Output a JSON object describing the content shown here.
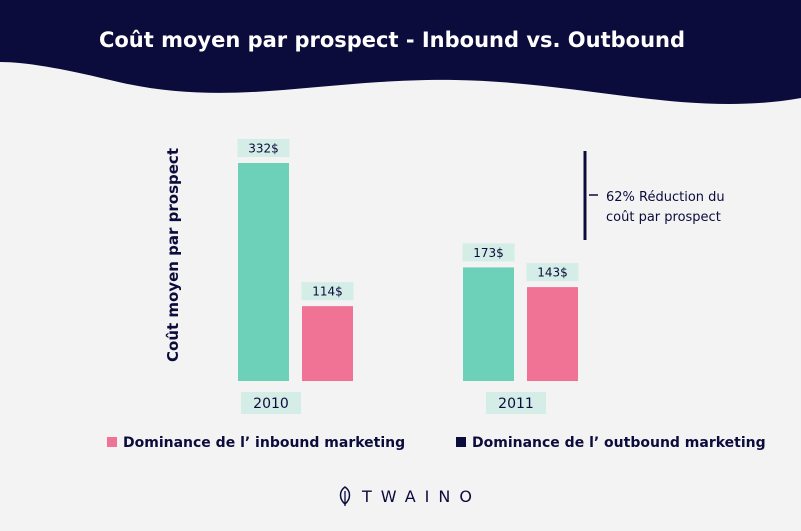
{
  "colors": {
    "header": "#0c0c3c",
    "background": "#f3f3f4",
    "teal": "#6dd0b8",
    "pink": "#f07396",
    "label_bg": "#d4ede7",
    "navy_text": "#0c0c3c"
  },
  "chart_data": {
    "type": "bar",
    "title": "Coût moyen par prospect - Inbound vs. Outbound",
    "ylabel": "Coût moyen par prospect",
    "categories": [
      "2010",
      "2011"
    ],
    "series": [
      {
        "values": [
          332,
          173
        ],
        "labels": [
          "332$",
          "173$"
        ],
        "color": "#6dd0b8"
      },
      {
        "values": [
          114,
          143
        ],
        "labels": [
          "114$",
          "143$"
        ],
        "color": "#f07396"
      }
    ],
    "legend": [
      {
        "label": "Dominance de l’ inbound marketing",
        "color": "#f07396"
      },
      {
        "label": "Dominance de l’ outbound marketing",
        "color": "#0c0c3c"
      }
    ],
    "annotation": {
      "line1": "62% Réduction du",
      "line2": "coût par prospect"
    },
    "grid": false,
    "legend_position": "bottom"
  },
  "brand": {
    "logo_text": "TWAINO"
  }
}
